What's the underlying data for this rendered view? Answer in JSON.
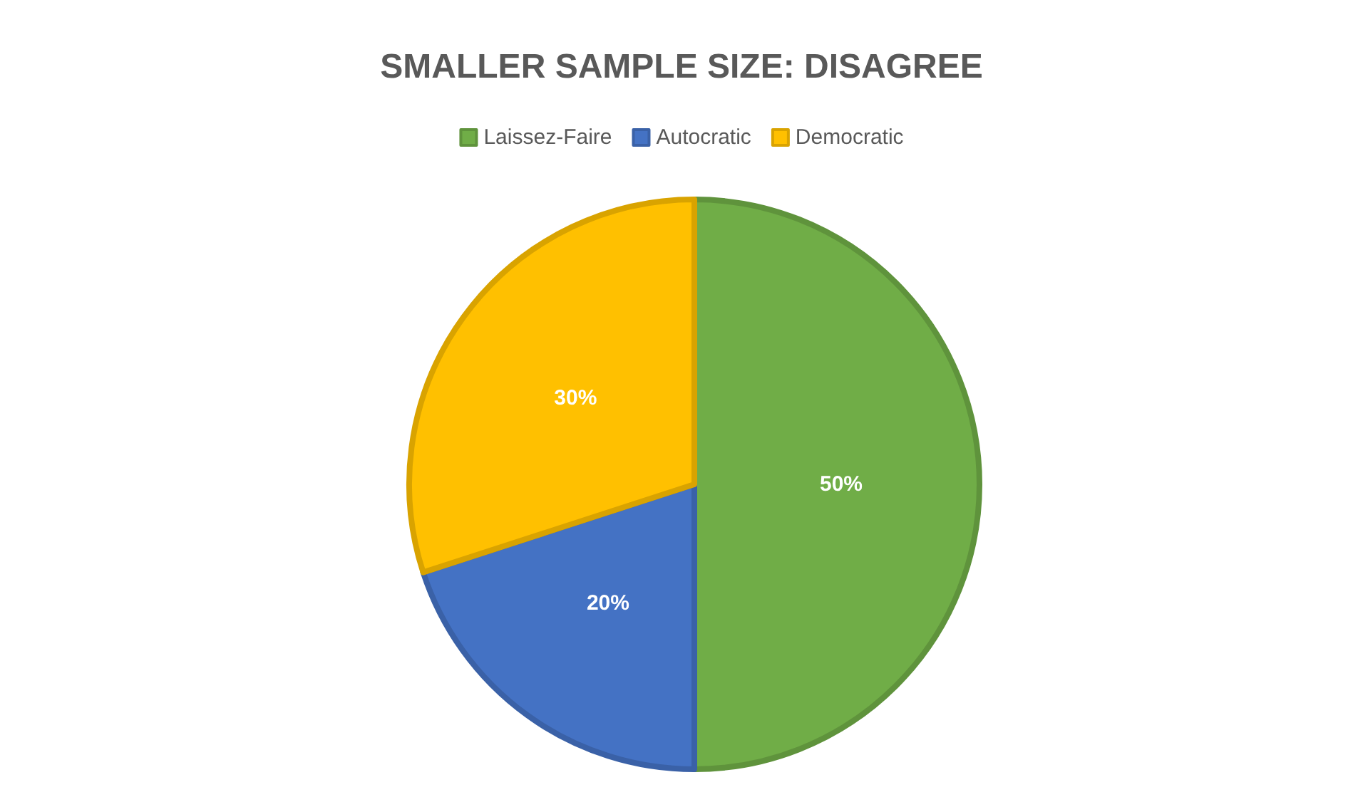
{
  "chart_data": {
    "type": "pie",
    "title": "SMALLER SAMPLE SIZE: DISAGREE",
    "categories": [
      "Laissez-Faire",
      "Autocratic",
      "Democratic"
    ],
    "values": [
      50,
      20,
      30
    ],
    "colors": [
      "#70ad47",
      "#4472c4",
      "#ffc000"
    ],
    "value_labels": [
      "50%",
      "20%",
      "30%"
    ],
    "legend": "top"
  }
}
